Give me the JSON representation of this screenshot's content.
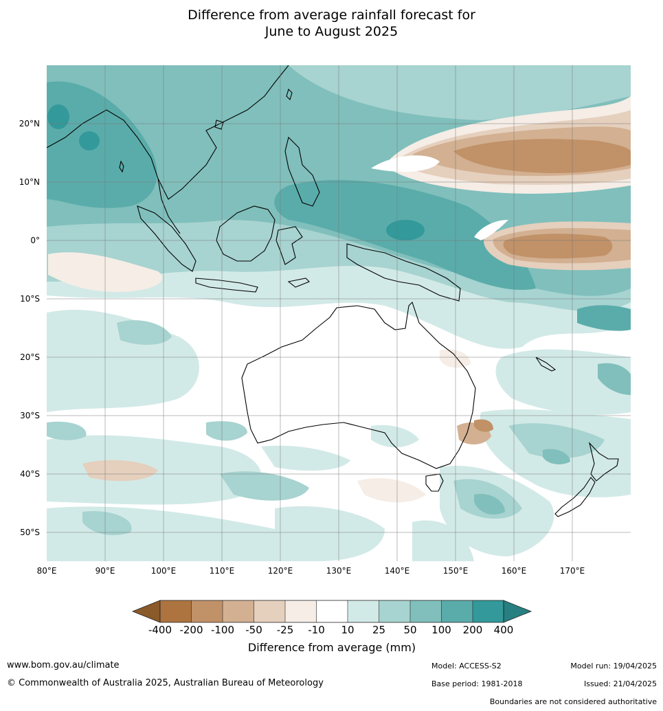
{
  "title_line1": "Difference from average rainfall forecast for",
  "title_line2": "June to August 2025",
  "lon_labels": [
    "80°E",
    "90°E",
    "100°E",
    "110°E",
    "120°E",
    "130°E",
    "140°E",
    "150°E",
    "160°E",
    "170°E"
  ],
  "lat_labels": [
    "20°N",
    "10°N",
    "0°",
    "10°S",
    "20°S",
    "30°S",
    "40°S",
    "50°S"
  ],
  "lon_range": [
    80,
    180
  ],
  "lat_range": [
    -55,
    30
  ],
  "colorbar": {
    "title": "Difference from average (mm)",
    "tick_labels": [
      "-400",
      "-200",
      "-100",
      "-50",
      "-25",
      "-10",
      "10",
      "25",
      "50",
      "100",
      "200",
      "400"
    ],
    "colors": [
      "#8a5a2b",
      "#ad7440",
      "#c19168",
      "#d2b091",
      "#e5cfbd",
      "#f5ede6",
      "#ffffff",
      "#d2eae7",
      "#a7d3d0",
      "#80bfbc",
      "#5aacaa",
      "#33999a",
      "#267f80"
    ]
  },
  "footer": {
    "website": "www.bom.gov.au/climate",
    "copyright": "© Commonwealth of Australia 2025, Australian Bureau of Meteorology",
    "model": "Model: ACCESS-S2",
    "model_run": "Model run: 19/04/2025",
    "base_period": "Base period: 1981-2018",
    "issued": "Issued: 21/04/2025",
    "disclaimer": "Boundaries are not considered authoritative"
  }
}
